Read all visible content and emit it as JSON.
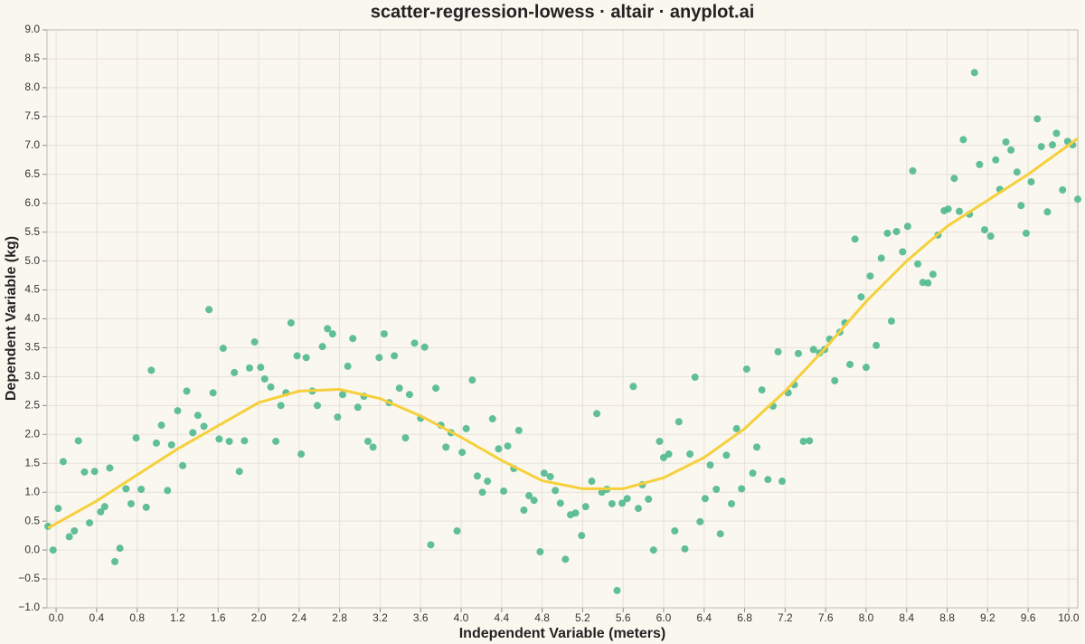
{
  "chart_data": {
    "type": "scatter",
    "title": "scatter-regression-lowess · altair · anyplot.ai",
    "x_label": "Independent Variable (meters)",
    "y_label": "Dependent Variable (kg)",
    "xlim": [
      -0.09,
      10.09
    ],
    "ylim": [
      -1,
      9
    ],
    "grid": true,
    "xticks": [
      {
        "value": 0,
        "label": "0.0"
      },
      0.4,
      0.8,
      1.2,
      1.6,
      {
        "value": 2,
        "label": "2.0"
      },
      2.4,
      2.8,
      3.2,
      3.6,
      {
        "value": 4,
        "label": "4.0"
      },
      4.4,
      4.8,
      5.2,
      5.6,
      {
        "value": 6,
        "label": "6.0"
      },
      6.4,
      6.8,
      7.2,
      7.6,
      {
        "value": 8,
        "label": "8.0"
      },
      8.4,
      8.8,
      9.2,
      9.6,
      {
        "value": 10,
        "label": "10.0"
      }
    ],
    "yticks": [
      {
        "value": -1,
        "label": "−1.0"
      },
      {
        "value": -0.5,
        "label": "−0.5"
      },
      {
        "value": 0,
        "label": "0.0"
      },
      0.5,
      {
        "value": 1,
        "label": "1.0"
      },
      1.5,
      {
        "value": 2,
        "label": "2.0"
      },
      2.5,
      {
        "value": 3,
        "label": "3.0"
      },
      3.5,
      {
        "value": 4,
        "label": "4.0"
      },
      4.5,
      {
        "value": 5,
        "label": "5.0"
      },
      5.5,
      {
        "value": 6,
        "label": "6.0"
      },
      6.5,
      {
        "value": 7,
        "label": "7.0"
      },
      7.5,
      {
        "value": 8,
        "label": "8.0"
      },
      8.5,
      {
        "value": 9,
        "label": "9.0"
      }
    ],
    "series": [
      {
        "type": "scatter",
        "color": "#4fb88f",
        "x": [
          -0.08,
          -0.03,
          0.02,
          0.07,
          0.13,
          0.18,
          0.22,
          0.28,
          0.33,
          0.38,
          0.44,
          0.48,
          0.53,
          0.58,
          0.63,
          0.69,
          0.74,
          0.79,
          0.84,
          0.89,
          0.94,
          0.99,
          1.04,
          1.1,
          1.14,
          1.2,
          1.25,
          1.29,
          1.35,
          1.4,
          1.46,
          1.51,
          1.55,
          1.61,
          1.65,
          1.71,
          1.76,
          1.81,
          1.86,
          1.91,
          1.96,
          2.02,
          2.06,
          2.12,
          2.17,
          2.22,
          2.27,
          2.32,
          2.38,
          2.42,
          2.47,
          2.53,
          2.58,
          2.63,
          2.68,
          2.73,
          2.78,
          2.83,
          2.88,
          2.93,
          2.98,
          3.04,
          3.08,
          3.13,
          3.19,
          3.24,
          3.29,
          3.34,
          3.39,
          3.45,
          3.49,
          3.54,
          3.6,
          3.64,
          3.7,
          3.75,
          3.8,
          3.85,
          3.9,
          3.96,
          4.01,
          4.05,
          4.11,
          4.16,
          4.21,
          4.26,
          4.31,
          4.37,
          4.42,
          4.46,
          4.52,
          4.57,
          4.62,
          4.67,
          4.72,
          4.78,
          4.82,
          4.88,
          4.93,
          4.98,
          5.03,
          5.08,
          5.13,
          5.19,
          5.23,
          5.29,
          5.34,
          5.39,
          5.44,
          5.49,
          5.54,
          5.59,
          5.64,
          5.7,
          5.75,
          5.79,
          5.85,
          5.9,
          5.96,
          6.0,
          6.05,
          6.11,
          6.15,
          6.21,
          6.26,
          6.31,
          6.36,
          6.41,
          6.46,
          6.52,
          6.56,
          6.62,
          6.67,
          6.72,
          6.77,
          6.82,
          6.88,
          6.92,
          6.97,
          7.03,
          7.08,
          7.13,
          7.17,
          7.23,
          7.29,
          7.33,
          7.38,
          7.44,
          7.48,
          7.54,
          7.59,
          7.64,
          7.69,
          7.74,
          7.79,
          7.84,
          7.89,
          7.95,
          8.0,
          8.04,
          8.1,
          8.15,
          8.21,
          8.25,
          8.3,
          8.36,
          8.41,
          8.46,
          8.51,
          8.56,
          8.61,
          8.66,
          8.71,
          8.77,
          8.81,
          8.87,
          8.92,
          8.96,
          9.02,
          9.07,
          9.12,
          9.17,
          9.23,
          9.28,
          9.32,
          9.38,
          9.43,
          9.49,
          9.53,
          9.58,
          9.63,
          9.69,
          9.73,
          9.79,
          9.84,
          9.88,
          9.94,
          9.99,
          10.04,
          10.09
        ],
        "values": [
          0.41,
          0.0,
          0.72,
          1.53,
          0.23,
          0.33,
          1.89,
          1.35,
          0.47,
          1.36,
          0.66,
          0.75,
          1.42,
          -0.2,
          0.03,
          1.06,
          0.8,
          1.94,
          1.05,
          0.74,
          3.11,
          1.85,
          2.16,
          1.03,
          1.82,
          2.41,
          1.46,
          2.75,
          2.03,
          2.33,
          2.14,
          4.16,
          2.72,
          1.92,
          3.49,
          1.88,
          3.07,
          1.36,
          1.89,
          3.15,
          3.6,
          3.16,
          2.96,
          2.82,
          1.88,
          2.5,
          2.72,
          3.93,
          3.36,
          1.66,
          3.33,
          2.75,
          2.5,
          3.52,
          3.83,
          3.74,
          2.3,
          2.69,
          3.18,
          3.66,
          2.47,
          2.66,
          1.88,
          1.78,
          3.33,
          3.74,
          2.55,
          3.36,
          2.8,
          1.94,
          2.69,
          3.58,
          2.28,
          3.51,
          0.09,
          2.8,
          2.16,
          1.78,
          2.03,
          0.33,
          1.69,
          2.1,
          2.94,
          1.28,
          1.0,
          1.19,
          2.27,
          1.75,
          1.02,
          1.8,
          1.41,
          2.07,
          0.69,
          0.94,
          0.86,
          -0.03,
          1.33,
          1.27,
          1.03,
          0.81,
          -0.16,
          0.61,
          0.64,
          0.25,
          0.75,
          1.19,
          2.36,
          1.0,
          1.05,
          0.8,
          -0.7,
          0.81,
          0.89,
          2.83,
          0.72,
          1.13,
          0.88,
          0.0,
          1.88,
          1.6,
          1.66,
          0.33,
          2.22,
          0.02,
          1.66,
          2.99,
          0.49,
          0.89,
          1.47,
          1.05,
          0.28,
          1.64,
          0.8,
          2.1,
          1.06,
          3.13,
          1.33,
          1.78,
          2.77,
          1.22,
          2.49,
          3.43,
          1.19,
          2.72,
          2.86,
          3.4,
          1.88,
          1.89,
          3.47,
          3.41,
          3.47,
          3.65,
          2.93,
          3.77,
          3.93,
          3.21,
          5.38,
          4.38,
          3.16,
          4.74,
          3.54,
          5.05,
          5.48,
          3.96,
          5.51,
          5.16,
          5.6,
          6.56,
          4.95,
          4.63,
          4.62,
          4.77,
          5.45,
          5.87,
          5.9,
          6.43,
          5.86,
          7.1,
          5.81,
          8.26,
          6.67,
          5.54,
          5.43,
          6.75,
          6.24,
          7.06,
          6.92,
          6.54,
          5.96,
          5.48,
          6.37,
          7.46,
          6.98,
          5.85,
          7.01,
          7.21,
          6.23,
          7.07,
          7.01,
          6.07
        ]
      },
      {
        "type": "line",
        "color": "#f6d03c",
        "x": [
          -0.08,
          0.4,
          0.8,
          1.2,
          1.6,
          2.0,
          2.4,
          2.8,
          3.2,
          3.6,
          4.0,
          4.4,
          4.8,
          5.2,
          5.6,
          6.0,
          6.4,
          6.8,
          7.2,
          7.6,
          8.0,
          8.4,
          8.8,
          9.2,
          9.6,
          10.09
        ],
        "values": [
          0.38,
          0.85,
          1.3,
          1.75,
          2.15,
          2.55,
          2.75,
          2.78,
          2.62,
          2.32,
          1.95,
          1.55,
          1.2,
          1.06,
          1.06,
          1.25,
          1.6,
          2.1,
          2.75,
          3.5,
          4.3,
          5.0,
          5.6,
          6.05,
          6.5,
          7.12
        ]
      }
    ]
  }
}
